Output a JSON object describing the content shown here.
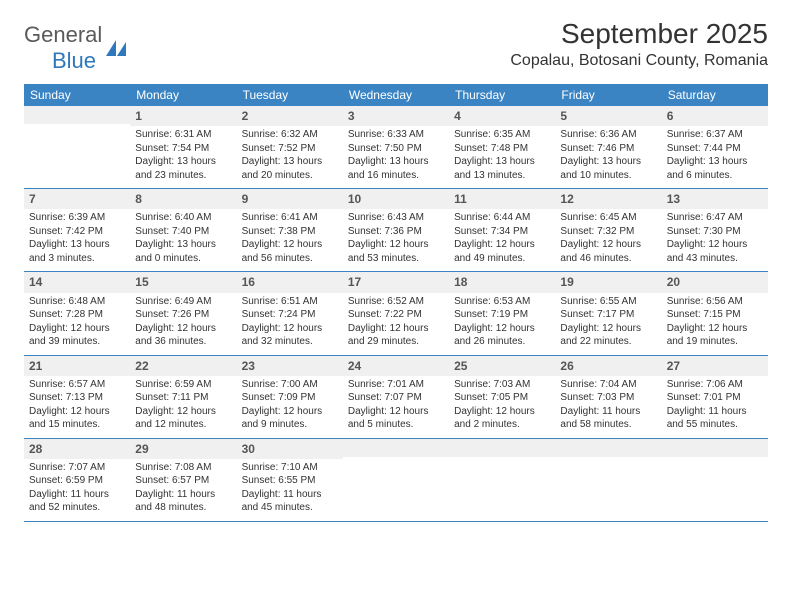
{
  "logo": {
    "word1": "General",
    "word2": "Blue",
    "icon_color": "#2f78bd"
  },
  "title": "September 2025",
  "location": "Copalau, Botosani County, Romania",
  "header_bg": "#3b84c4",
  "header_text_color": "#ffffff",
  "divider_color": "#3b84c4",
  "daynum_bg": "#f0f0f0",
  "body_text_color": "#333333",
  "page_bg": "#ffffff",
  "day_headers": [
    "Sunday",
    "Monday",
    "Tuesday",
    "Wednesday",
    "Thursday",
    "Friday",
    "Saturday"
  ],
  "weeks": [
    [
      {
        "num": "",
        "lines": []
      },
      {
        "num": "1",
        "lines": [
          "Sunrise: 6:31 AM",
          "Sunset: 7:54 PM",
          "Daylight: 13 hours and 23 minutes."
        ]
      },
      {
        "num": "2",
        "lines": [
          "Sunrise: 6:32 AM",
          "Sunset: 7:52 PM",
          "Daylight: 13 hours and 20 minutes."
        ]
      },
      {
        "num": "3",
        "lines": [
          "Sunrise: 6:33 AM",
          "Sunset: 7:50 PM",
          "Daylight: 13 hours and 16 minutes."
        ]
      },
      {
        "num": "4",
        "lines": [
          "Sunrise: 6:35 AM",
          "Sunset: 7:48 PM",
          "Daylight: 13 hours and 13 minutes."
        ]
      },
      {
        "num": "5",
        "lines": [
          "Sunrise: 6:36 AM",
          "Sunset: 7:46 PM",
          "Daylight: 13 hours and 10 minutes."
        ]
      },
      {
        "num": "6",
        "lines": [
          "Sunrise: 6:37 AM",
          "Sunset: 7:44 PM",
          "Daylight: 13 hours and 6 minutes."
        ]
      }
    ],
    [
      {
        "num": "7",
        "lines": [
          "Sunrise: 6:39 AM",
          "Sunset: 7:42 PM",
          "Daylight: 13 hours and 3 minutes."
        ]
      },
      {
        "num": "8",
        "lines": [
          "Sunrise: 6:40 AM",
          "Sunset: 7:40 PM",
          "Daylight: 13 hours and 0 minutes."
        ]
      },
      {
        "num": "9",
        "lines": [
          "Sunrise: 6:41 AM",
          "Sunset: 7:38 PM",
          "Daylight: 12 hours and 56 minutes."
        ]
      },
      {
        "num": "10",
        "lines": [
          "Sunrise: 6:43 AM",
          "Sunset: 7:36 PM",
          "Daylight: 12 hours and 53 minutes."
        ]
      },
      {
        "num": "11",
        "lines": [
          "Sunrise: 6:44 AM",
          "Sunset: 7:34 PM",
          "Daylight: 12 hours and 49 minutes."
        ]
      },
      {
        "num": "12",
        "lines": [
          "Sunrise: 6:45 AM",
          "Sunset: 7:32 PM",
          "Daylight: 12 hours and 46 minutes."
        ]
      },
      {
        "num": "13",
        "lines": [
          "Sunrise: 6:47 AM",
          "Sunset: 7:30 PM",
          "Daylight: 12 hours and 43 minutes."
        ]
      }
    ],
    [
      {
        "num": "14",
        "lines": [
          "Sunrise: 6:48 AM",
          "Sunset: 7:28 PM",
          "Daylight: 12 hours and 39 minutes."
        ]
      },
      {
        "num": "15",
        "lines": [
          "Sunrise: 6:49 AM",
          "Sunset: 7:26 PM",
          "Daylight: 12 hours and 36 minutes."
        ]
      },
      {
        "num": "16",
        "lines": [
          "Sunrise: 6:51 AM",
          "Sunset: 7:24 PM",
          "Daylight: 12 hours and 32 minutes."
        ]
      },
      {
        "num": "17",
        "lines": [
          "Sunrise: 6:52 AM",
          "Sunset: 7:22 PM",
          "Daylight: 12 hours and 29 minutes."
        ]
      },
      {
        "num": "18",
        "lines": [
          "Sunrise: 6:53 AM",
          "Sunset: 7:19 PM",
          "Daylight: 12 hours and 26 minutes."
        ]
      },
      {
        "num": "19",
        "lines": [
          "Sunrise: 6:55 AM",
          "Sunset: 7:17 PM",
          "Daylight: 12 hours and 22 minutes."
        ]
      },
      {
        "num": "20",
        "lines": [
          "Sunrise: 6:56 AM",
          "Sunset: 7:15 PM",
          "Daylight: 12 hours and 19 minutes."
        ]
      }
    ],
    [
      {
        "num": "21",
        "lines": [
          "Sunrise: 6:57 AM",
          "Sunset: 7:13 PM",
          "Daylight: 12 hours and 15 minutes."
        ]
      },
      {
        "num": "22",
        "lines": [
          "Sunrise: 6:59 AM",
          "Sunset: 7:11 PM",
          "Daylight: 12 hours and 12 minutes."
        ]
      },
      {
        "num": "23",
        "lines": [
          "Sunrise: 7:00 AM",
          "Sunset: 7:09 PM",
          "Daylight: 12 hours and 9 minutes."
        ]
      },
      {
        "num": "24",
        "lines": [
          "Sunrise: 7:01 AM",
          "Sunset: 7:07 PM",
          "Daylight: 12 hours and 5 minutes."
        ]
      },
      {
        "num": "25",
        "lines": [
          "Sunrise: 7:03 AM",
          "Sunset: 7:05 PM",
          "Daylight: 12 hours and 2 minutes."
        ]
      },
      {
        "num": "26",
        "lines": [
          "Sunrise: 7:04 AM",
          "Sunset: 7:03 PM",
          "Daylight: 11 hours and 58 minutes."
        ]
      },
      {
        "num": "27",
        "lines": [
          "Sunrise: 7:06 AM",
          "Sunset: 7:01 PM",
          "Daylight: 11 hours and 55 minutes."
        ]
      }
    ],
    [
      {
        "num": "28",
        "lines": [
          "Sunrise: 7:07 AM",
          "Sunset: 6:59 PM",
          "Daylight: 11 hours and 52 minutes."
        ]
      },
      {
        "num": "29",
        "lines": [
          "Sunrise: 7:08 AM",
          "Sunset: 6:57 PM",
          "Daylight: 11 hours and 48 minutes."
        ]
      },
      {
        "num": "30",
        "lines": [
          "Sunrise: 7:10 AM",
          "Sunset: 6:55 PM",
          "Daylight: 11 hours and 45 minutes."
        ]
      },
      {
        "num": "",
        "lines": []
      },
      {
        "num": "",
        "lines": []
      },
      {
        "num": "",
        "lines": []
      },
      {
        "num": "",
        "lines": []
      }
    ]
  ]
}
